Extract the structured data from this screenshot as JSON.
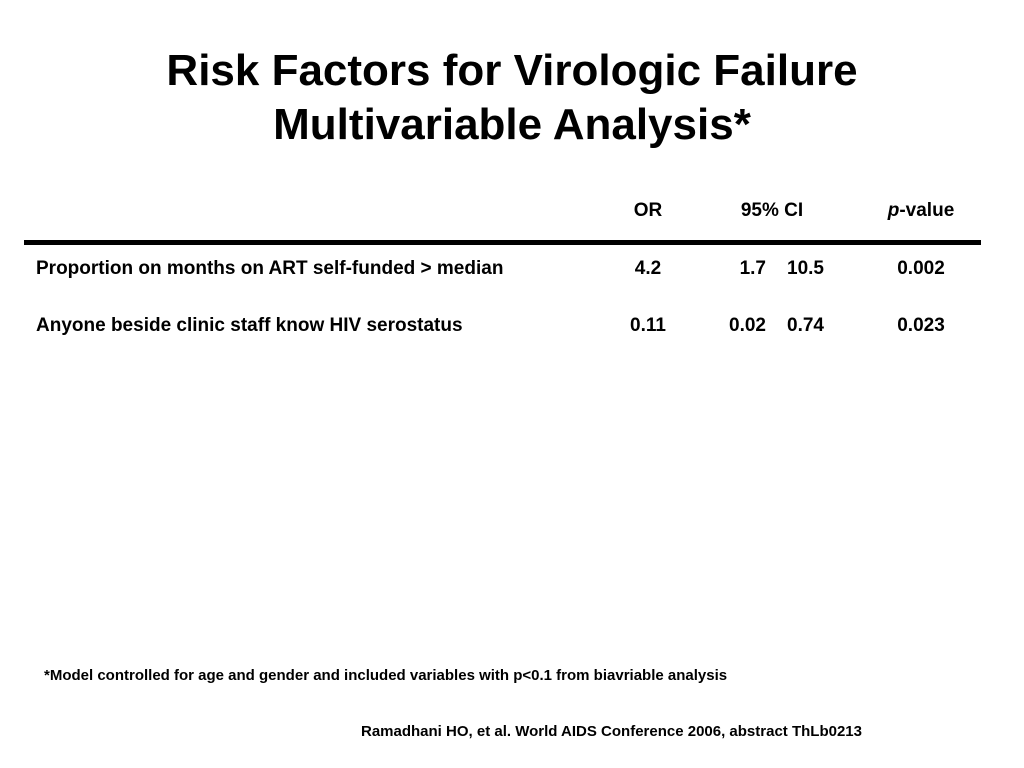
{
  "title": {
    "line1": "Risk Factors for Virologic Failure",
    "line2": "Multivariable Analysis*"
  },
  "table": {
    "headers": {
      "or": "OR",
      "ci": "95% CI",
      "p_italic": "p",
      "p_rest": "-value"
    },
    "rows": [
      {
        "label": "Proportion on months on ART self-funded > median",
        "or": "4.2",
        "ci_low": "1.7",
        "ci_high": "10.5",
        "p": "0.002"
      },
      {
        "label": "Anyone beside clinic staff know HIV serostatus",
        "or": "0.11",
        "ci_low": "0.02",
        "ci_high": "0.74",
        "p": "0.023"
      }
    ]
  },
  "footnote": "*Model controlled for age and gender and included variables with p<0.1 from biavriable analysis",
  "citation": "Ramadhani HO, et al. World AIDS Conference 2006, abstract ThLb0213"
}
